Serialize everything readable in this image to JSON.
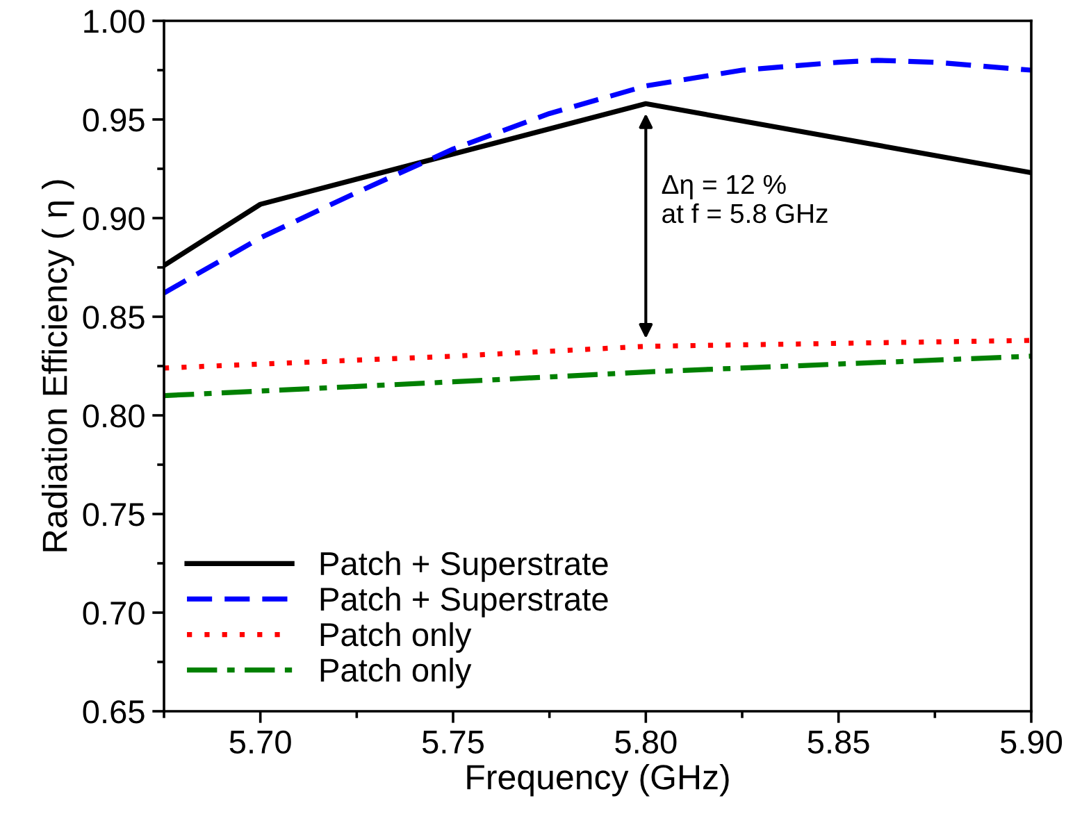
{
  "chart_data": {
    "type": "line",
    "xlabel": "Frequency (GHz)",
    "ylabel": "Radiation Efficiency ( η )",
    "xlim": [
      5.675,
      5.9
    ],
    "xticks": [
      {
        "value": 5.7,
        "label": "5.70"
      },
      5.75,
      {
        "value": 5.8,
        "label": "5.80"
      },
      5.85,
      {
        "value": 5.9,
        "label": "5.90"
      }
    ],
    "ylim": [
      0.65,
      1.0
    ],
    "yticks": [
      0.65,
      {
        "value": 0.7,
        "label": "0.70"
      },
      0.75,
      {
        "value": 0.8,
        "label": "0.80"
      },
      0.85,
      {
        "value": 0.9,
        "label": "0.90"
      },
      0.95,
      {
        "value": 1.0,
        "label": "1.00"
      }
    ],
    "grid": false,
    "legend": "bottom left",
    "marker": "none",
    "annotations": [
      "Δη = 12 %\nat f = 5.8 GHz"
    ],
    "series": [
      {
        "name": "Patch + Superstrate",
        "color": "#000000",
        "line_style": "solid",
        "x": [
          5.675,
          5.7,
          5.8,
          5.9
        ],
        "values": [
          0.876,
          0.907,
          0.958,
          0.923
        ]
      },
      {
        "name": "Patch + Superstrate",
        "color": "#0000ff",
        "line_style": "dashed",
        "x": [
          5.675,
          5.7,
          5.725,
          5.75,
          5.775,
          5.8,
          5.825,
          5.85,
          5.86,
          5.875,
          5.9
        ],
        "values": [
          0.862,
          0.89,
          0.913,
          0.935,
          0.953,
          0.967,
          0.975,
          0.979,
          0.98,
          0.979,
          0.975
        ]
      },
      {
        "name": "Patch only",
        "color": "#ff0000",
        "line_style": "dotted",
        "x": [
          5.675,
          5.75,
          5.8,
          5.9
        ],
        "values": [
          0.824,
          0.83,
          0.835,
          0.838
        ]
      },
      {
        "name": "Patch only",
        "color": "#008000",
        "line_style": "dashdot",
        "x": [
          5.675,
          5.75,
          5.8,
          5.9
        ],
        "values": [
          0.81,
          0.817,
          0.822,
          0.83
        ]
      }
    ]
  }
}
